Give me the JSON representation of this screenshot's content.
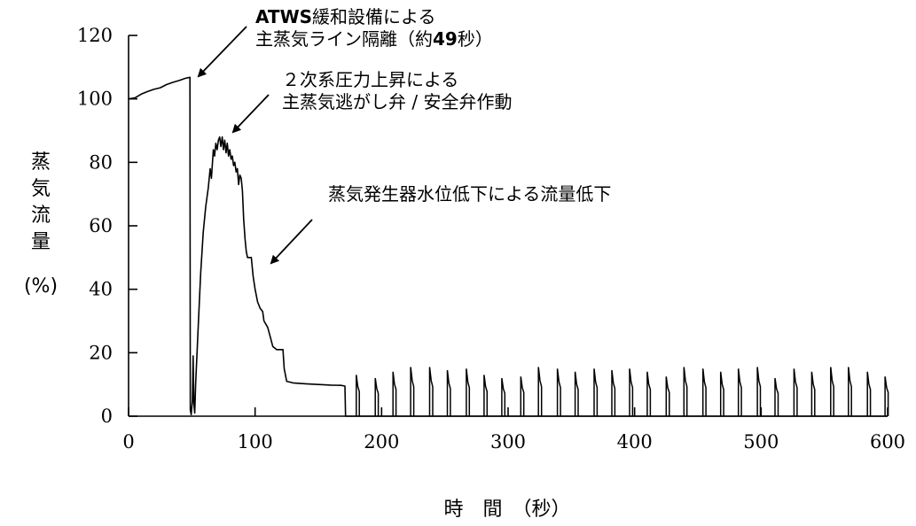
{
  "chart_data": {
    "type": "line",
    "title": "",
    "xlabel": "時　間　（秒）",
    "ylabel_chars": [
      "蒸",
      "気",
      "流",
      "量"
    ],
    "ylabel_unit": "(%)",
    "xlim": [
      0,
      600
    ],
    "ylim": [
      0,
      120
    ],
    "x_ticks": [
      "0",
      "100",
      "200",
      "300",
      "400",
      "500",
      "600"
    ],
    "y_ticks": [
      "0",
      "20",
      "40",
      "60",
      "80",
      "100",
      "120"
    ],
    "grid": false,
    "series": [
      {
        "points": [
          [
            0,
            100
          ],
          [
            5,
            100.3
          ],
          [
            10,
            101.5
          ],
          [
            15,
            102.3
          ],
          [
            20,
            103
          ],
          [
            25,
            103.5
          ],
          [
            30,
            104.5
          ],
          [
            35,
            105.2
          ],
          [
            40,
            105.8
          ],
          [
            45,
            106.5
          ],
          [
            48.5,
            106.8
          ],
          [
            48.8,
            2
          ],
          [
            49.5,
            0.5
          ],
          [
            50.5,
            5
          ],
          [
            51,
            19
          ],
          [
            51.6,
            4
          ],
          [
            52.3,
            1
          ],
          [
            53,
            10
          ],
          [
            55,
            28
          ],
          [
            57,
            45
          ],
          [
            59,
            58
          ],
          [
            61,
            66
          ],
          [
            63,
            72
          ],
          [
            64.5,
            78
          ],
          [
            65.5,
            75
          ],
          [
            67,
            84
          ],
          [
            68,
            82
          ],
          [
            69,
            86
          ],
          [
            70,
            84
          ],
          [
            71,
            87
          ],
          [
            72,
            88
          ],
          [
            73,
            85
          ],
          [
            74,
            88
          ],
          [
            75,
            84
          ],
          [
            76,
            87
          ],
          [
            77,
            83
          ],
          [
            78,
            86
          ],
          [
            79,
            82
          ],
          [
            80,
            84
          ],
          [
            81,
            81
          ],
          [
            82,
            82
          ],
          [
            83,
            79
          ],
          [
            84,
            80
          ],
          [
            85,
            77
          ],
          [
            86,
            78
          ],
          [
            87,
            73
          ],
          [
            88,
            76
          ],
          [
            89,
            75
          ],
          [
            90,
            71
          ],
          [
            91,
            62
          ],
          [
            92,
            56
          ],
          [
            93,
            52
          ],
          [
            94,
            50
          ],
          [
            97,
            50
          ],
          [
            98.5,
            44
          ],
          [
            100,
            40
          ],
          [
            102,
            36
          ],
          [
            104,
            34
          ],
          [
            106,
            33
          ],
          [
            107,
            30
          ],
          [
            110,
            28
          ],
          [
            112,
            25
          ],
          [
            114,
            22
          ],
          [
            117,
            21
          ],
          [
            122,
            21
          ],
          [
            123,
            15
          ],
          [
            125,
            11
          ],
          [
            130,
            10.5
          ],
          [
            140,
            10.2
          ],
          [
            150,
            10
          ],
          [
            160,
            9.8
          ],
          [
            168,
            9.7
          ],
          [
            171,
            9.5
          ],
          [
            171.5,
            0
          ],
          [
            180,
            0
          ]
        ]
      }
    ],
    "pulses": [
      {
        "x": 180,
        "peak": 13
      },
      {
        "x": 195,
        "peak": 12
      },
      {
        "x": 209,
        "peak": 14
      },
      {
        "x": 223,
        "peak": 15.5
      },
      {
        "x": 238,
        "peak": 15.5
      },
      {
        "x": 252,
        "peak": 14.5
      },
      {
        "x": 267,
        "peak": 15
      },
      {
        "x": 281,
        "peak": 13
      },
      {
        "x": 295,
        "peak": 12
      },
      {
        "x": 310,
        "peak": 12.5
      },
      {
        "x": 324,
        "peak": 15.5
      },
      {
        "x": 339,
        "peak": 15
      },
      {
        "x": 353,
        "peak": 14
      },
      {
        "x": 368,
        "peak": 15
      },
      {
        "x": 382,
        "peak": 14.5
      },
      {
        "x": 396,
        "peak": 15
      },
      {
        "x": 410,
        "peak": 14
      },
      {
        "x": 425,
        "peak": 12.5
      },
      {
        "x": 439,
        "peak": 15.5
      },
      {
        "x": 454,
        "peak": 15
      },
      {
        "x": 468,
        "peak": 14
      },
      {
        "x": 482,
        "peak": 15
      },
      {
        "x": 497,
        "peak": 15.5
      },
      {
        "x": 511,
        "peak": 12
      },
      {
        "x": 526,
        "peak": 15
      },
      {
        "x": 540,
        "peak": 14
      },
      {
        "x": 555,
        "peak": 15.5
      },
      {
        "x": 569,
        "peak": 15.5
      },
      {
        "x": 584,
        "peak": 14
      },
      {
        "x": 598,
        "peak": 12.5
      }
    ],
    "annotations": [
      {
        "lines": [
          "ATWS緩和設備による",
          "主蒸気ライン隔離（約49秒）"
        ],
        "bold_prefix": "ATWS",
        "bold_suffix": "49"
      },
      {
        "lines": [
          "２次系圧力上昇による",
          "主蒸気逃がし弁 / 安全弁作動"
        ]
      },
      {
        "lines": [
          "蒸気発生器水位低下による流量低下"
        ]
      }
    ]
  }
}
